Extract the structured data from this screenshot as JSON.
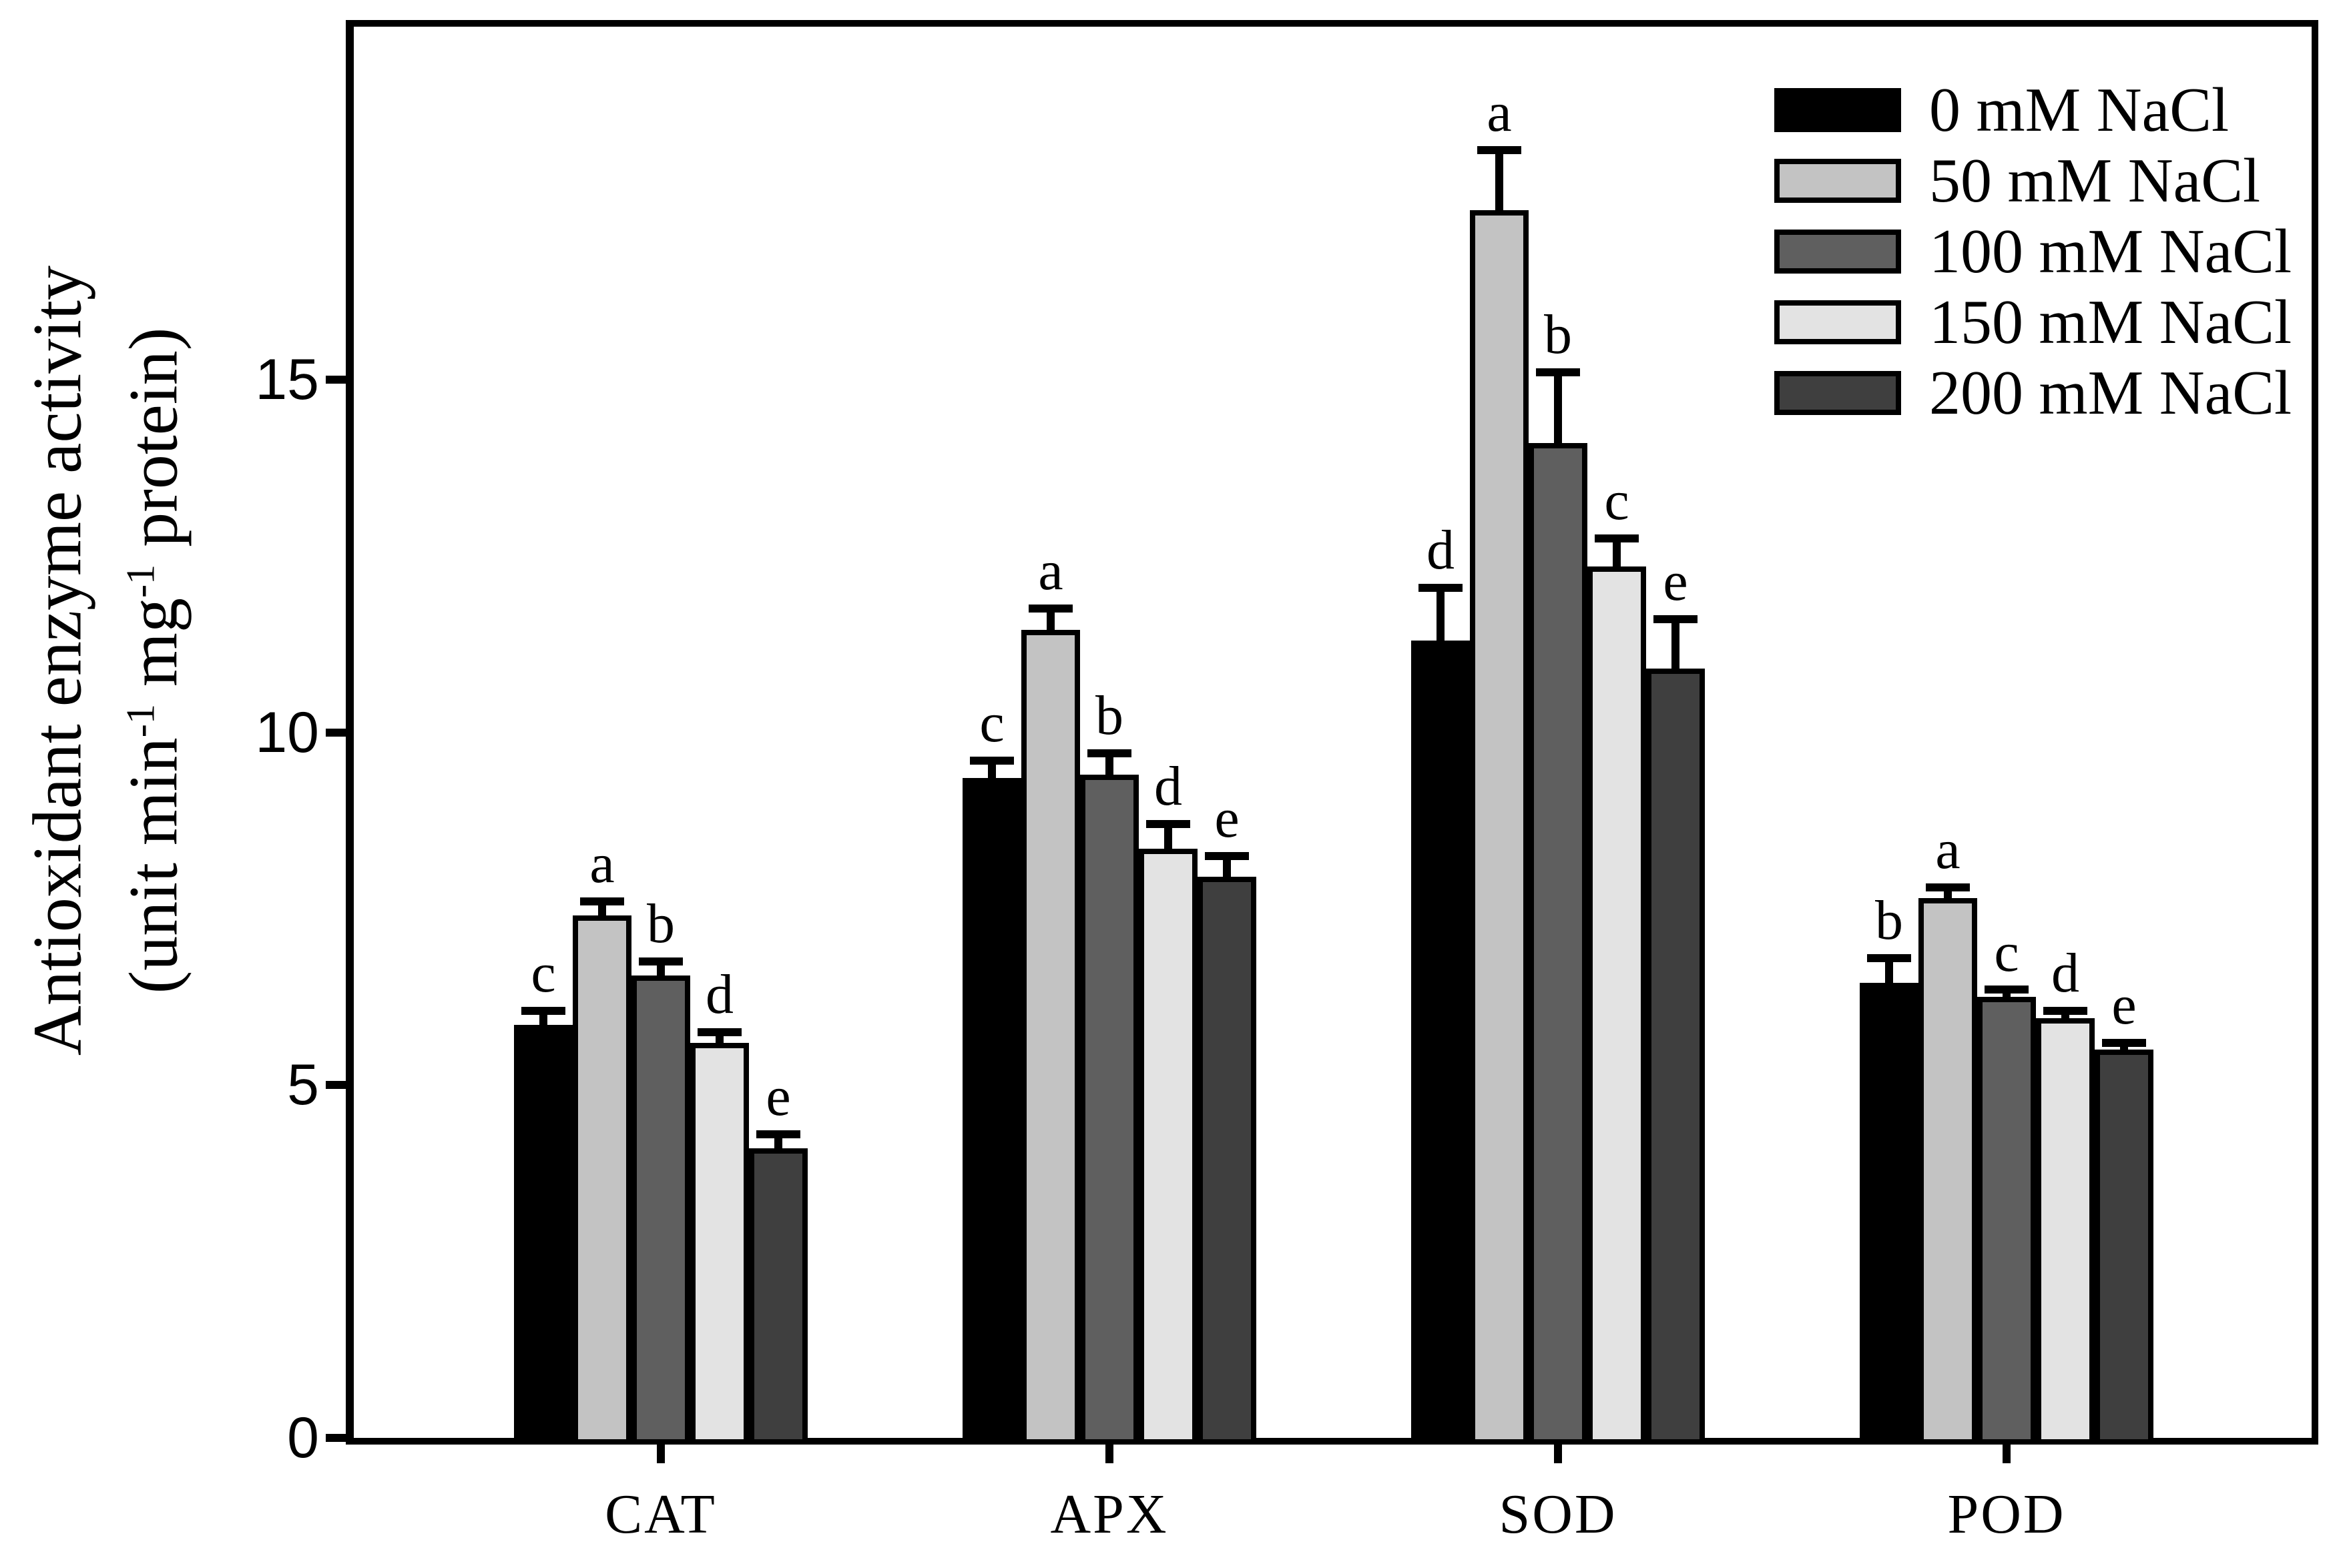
{
  "figure": {
    "y_axis": {
      "title_line1": "Antioxidant enzyme activity",
      "title_line2_parts": {
        "a": "(unit min",
        "sup1": "-1",
        "b": " mg",
        "sup2": "-1",
        "c": " protein)"
      },
      "tick_labels": [
        "0",
        "5",
        "10",
        "15"
      ]
    },
    "colors": {
      "series": [
        "#000000",
        "#c3c3c3",
        "#5f5f5f",
        "#e3e3e3",
        "#3f3f3f"
      ],
      "axis": "#000000",
      "background": "#ffffff"
    }
  },
  "chart_data": {
    "type": "bar",
    "title": "",
    "xlabel": "",
    "ylabel": "Antioxidant enzyme activity (unit min⁻¹ mg⁻¹ protein)",
    "categories": [
      "CAT",
      "APX",
      "SOD",
      "POD"
    ],
    "ylim": [
      0,
      20
    ],
    "yticks": [
      0,
      5,
      10,
      15
    ],
    "grid": false,
    "legend_position": "upper-right-inside",
    "error_bars": "upper-only",
    "series": [
      {
        "name": "0 mM NaCl",
        "color": "#000000",
        "values": [
          5.85,
          9.35,
          11.3,
          6.45
        ],
        "errors": [
          0.2,
          0.25,
          0.75,
          0.35
        ],
        "letters": [
          "c",
          "c",
          "d",
          "b"
        ]
      },
      {
        "name": "50 mM NaCl",
        "color": "#c3c3c3",
        "values": [
          7.4,
          11.45,
          17.4,
          7.65
        ],
        "errors": [
          0.2,
          0.3,
          0.85,
          0.15
        ],
        "letters": [
          "a",
          "a",
          "a",
          "a"
        ]
      },
      {
        "name": "100 mM NaCl",
        "color": "#5f5f5f",
        "values": [
          6.55,
          9.4,
          14.1,
          6.25
        ],
        "errors": [
          0.2,
          0.3,
          1.0,
          0.1
        ],
        "letters": [
          "b",
          "b",
          "b",
          "c"
        ]
      },
      {
        "name": "150 mM NaCl",
        "color": "#e3e3e3",
        "values": [
          5.6,
          8.35,
          12.35,
          5.95
        ],
        "errors": [
          0.15,
          0.35,
          0.4,
          0.1
        ],
        "letters": [
          "d",
          "d",
          "c",
          "d"
        ]
      },
      {
        "name": "200 mM NaCl",
        "color": "#3f3f3f",
        "values": [
          4.1,
          7.95,
          10.9,
          5.5
        ],
        "errors": [
          0.2,
          0.3,
          0.7,
          0.1
        ],
        "letters": [
          "e",
          "e",
          "e",
          "e"
        ]
      }
    ]
  }
}
